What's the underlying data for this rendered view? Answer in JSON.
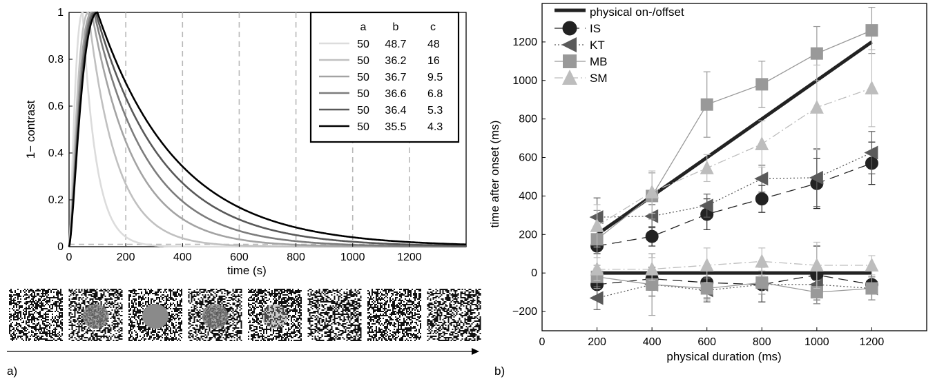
{
  "chart_data": [
    {
      "panel_label": "a)",
      "type": "line",
      "xlabel": "time (s)",
      "ylabel": "1− contrast",
      "xlim": [
        0,
        1400
      ],
      "ylim": [
        0,
        1
      ],
      "xticks": [
        "0",
        "200",
        "400",
        "600",
        "800",
        "1000",
        "1200"
      ],
      "yticks": [
        "0",
        "0.2",
        "0.4",
        "0.6",
        "0.8",
        "1"
      ],
      "vertical_dashed_lines": [
        200,
        400,
        600,
        800,
        1000,
        1200
      ],
      "baseline_dashed": 0.01,
      "legend": {
        "position": "top-right",
        "columns": [
          "a",
          "b",
          "c"
        ],
        "rows": [
          {
            "a": "50",
            "b": "48.7",
            "c": "48",
            "color": "#dcdcdc"
          },
          {
            "a": "50",
            "b": "36.2",
            "c": "16",
            "color": "#c0c0c0"
          },
          {
            "a": "50",
            "b": "36.7",
            "c": "9.5",
            "color": "#a3a3a3"
          },
          {
            "a": "50",
            "b": "36.6",
            "c": "6.8",
            "color": "#7c7c7c"
          },
          {
            "a": "50",
            "b": "36.4",
            "c": "5.3",
            "color": "#585858"
          },
          {
            "a": "50",
            "b": "35.5",
            "c": "4.3",
            "color": "#000000"
          }
        ]
      },
      "series": [
        {
          "peak_time": 48,
          "tau": 48,
          "color": "#dcdcdc"
        },
        {
          "peak_time": 68,
          "tau": 100,
          "color": "#c0c0c0"
        },
        {
          "peak_time": 80,
          "tau": 150,
          "color": "#a3a3a3"
        },
        {
          "peak_time": 88,
          "tau": 190,
          "color": "#7c7c7c"
        },
        {
          "peak_time": 94,
          "tau": 235,
          "color": "#585858"
        },
        {
          "peak_time": 100,
          "tau": 280,
          "color": "#000000"
        }
      ],
      "stimulus_frames": [
        {
          "disc": "none"
        },
        {
          "disc": "noisy"
        },
        {
          "disc": "solid"
        },
        {
          "disc": "noisy"
        },
        {
          "disc": "faint"
        },
        {
          "disc": "none"
        },
        {
          "disc": "none"
        },
        {
          "disc": "none"
        }
      ]
    },
    {
      "panel_label": "b)",
      "type": "line",
      "xlabel": "physical duration (ms)",
      "ylabel": "time after onset (ms)",
      "xlim": [
        0,
        1400
      ],
      "ylim": [
        -300,
        1400
      ],
      "xticks": [
        "0",
        "200",
        "400",
        "600",
        "800",
        "1000",
        "1200"
      ],
      "yticks": [
        "−200",
        "0",
        "200",
        "400",
        "600",
        "800",
        "1000",
        "1200"
      ],
      "x": [
        200,
        400,
        600,
        800,
        1000,
        1200
      ],
      "series": [
        {
          "name": "physical on-/offset",
          "kind": "reference",
          "color": "#222222",
          "onset": [
            200,
            400,
            600,
            800,
            1000,
            1200
          ],
          "offset": [
            0,
            0,
            0,
            0,
            0,
            0
          ]
        },
        {
          "name": "IS",
          "marker": "circle",
          "dash": "14,8",
          "color": "#222222",
          "onset": [
            140,
            190,
            305,
            385,
            465,
            570
          ],
          "onset_err": [
            40,
            50,
            80,
            70,
            130,
            110
          ],
          "offset": [
            -60,
            -30,
            -50,
            -60,
            -10,
            -60
          ],
          "offset_err": [
            60,
            60,
            80,
            90,
            150,
            80
          ]
        },
        {
          "name": "KT",
          "marker": "triangle-left",
          "dash": "2,3",
          "color": "#5a5a5a",
          "onset": [
            290,
            295,
            350,
            490,
            495,
            625
          ],
          "onset_err": [
            100,
            60,
            60,
            70,
            150,
            110
          ],
          "offset": [
            -130,
            -60,
            -90,
            -60,
            -60,
            -80
          ],
          "offset_err": [
            60,
            60,
            60,
            90,
            80,
            60
          ]
        },
        {
          "name": "MB",
          "marker": "square",
          "dash": "",
          "color": "#999999",
          "onset": [
            175,
            400,
            875,
            980,
            1140,
            1260
          ],
          "onset_err": [
            150,
            120,
            170,
            120,
            140,
            120
          ],
          "offset": [
            -20,
            -60,
            -80,
            -50,
            -100,
            -80
          ],
          "offset_err": [
            60,
            160,
            60,
            60,
            60,
            60
          ]
        },
        {
          "name": "SM",
          "marker": "triangle-up",
          "dash": "12,4,2,4",
          "color": "#bdbdbd",
          "onset": [
            245,
            420,
            545,
            670,
            860,
            960
          ],
          "onset_err": [
            110,
            110,
            70,
            120,
            220,
            200
          ],
          "offset": [
            20,
            20,
            40,
            60,
            40,
            40
          ],
          "offset_err": [
            60,
            60,
            90,
            70,
            120,
            50
          ]
        }
      ]
    }
  ]
}
